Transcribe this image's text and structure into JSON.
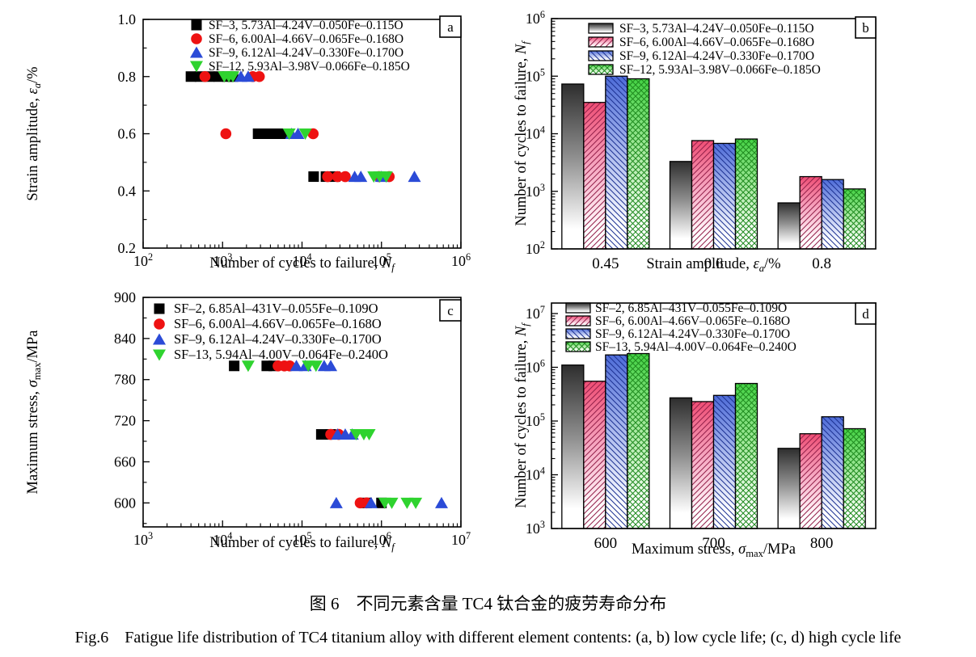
{
  "figure": {
    "caption_zh": "图 6　不同元素含量 TC4 钛合金的疲劳寿命分布",
    "caption_en": "Fig.6　Fatigue life distribution of TC4 titanium alloy with different element contents: (a, b) low cycle life; (c, d) high cycle life"
  },
  "palette": {
    "black": "#000000",
    "red": "#ee1212",
    "blue": "#2b4bd7",
    "green": "#2fd32f",
    "gray_top": "#2e2e2e",
    "gray_mid": "#909090",
    "pink_top": "#ef4d74",
    "pink_mid": "#f7abc4",
    "blue_top": "#4e6cd8",
    "blue_mid": "#aebcee",
    "green_top": "#44d244",
    "green_mid": "#aceaa4",
    "pink_hatch": "#93204a",
    "blue_hatch": "#1c3192",
    "green_hatch": "#1e8a1e",
    "axis": "#000000"
  },
  "chart_data": [
    {
      "panel": "a",
      "type": "scatter",
      "x_axis": {
        "log": true,
        "exp_min": 2,
        "exp_max": 6,
        "label_parts": [
          [
            "t",
            "Number of cycles to failure, "
          ],
          [
            "i",
            "N"
          ],
          [
            "s",
            "f"
          ]
        ]
      },
      "y_axis": {
        "min": 0.2,
        "max": 1.0,
        "ticks": [
          0.2,
          0.4,
          0.6,
          0.8,
          1.0
        ],
        "minor": [
          0.3,
          0.5,
          0.7,
          0.9
        ],
        "decimals": 1,
        "label_parts": [
          [
            "t",
            "Strain amplitude, "
          ],
          [
            "i",
            "ε"
          ],
          [
            "s",
            "a"
          ],
          [
            "t",
            "/%"
          ]
        ]
      },
      "legend_position": "top-left",
      "series": [
        {
          "name": "SF–3, 5.73Al–4.24V–0.050Fe–0.115O",
          "marker": "square",
          "color": "black",
          "points": [
            [
              400,
              0.8
            ],
            [
              520,
              0.8
            ],
            [
              680,
              0.8
            ],
            [
              900,
              0.8
            ],
            [
              1150,
              0.8
            ],
            [
              1350,
              0.8
            ],
            [
              2800,
              0.6
            ],
            [
              3400,
              0.6
            ],
            [
              4200,
              0.6
            ],
            [
              5100,
              0.6
            ],
            [
              5900,
              0.6
            ],
            [
              14000,
              0.45
            ],
            [
              20000,
              0.45
            ],
            [
              26000,
              0.45
            ]
          ]
        },
        {
          "name": "SF–6, 6.00Al–4.66V–0.065Fe–0.168O",
          "marker": "circle",
          "color": "red",
          "points": [
            [
              600,
              0.8
            ],
            [
              2400,
              0.8
            ],
            [
              2900,
              0.8
            ],
            [
              1100,
              0.6
            ],
            [
              13800,
              0.6
            ],
            [
              21000,
              0.45
            ],
            [
              28000,
              0.45
            ],
            [
              35000,
              0.45
            ],
            [
              93000,
              0.45
            ],
            [
              125000,
              0.45
            ]
          ]
        },
        {
          "name": "SF–9, 6.12Al–4.24V–0.330Fe–0.170O",
          "marker": "triangle-up",
          "color": "blue",
          "points": [
            [
              1700,
              0.8
            ],
            [
              2100,
              0.8
            ],
            [
              7400,
              0.6
            ],
            [
              8900,
              0.6
            ],
            [
              46000,
              0.45
            ],
            [
              55000,
              0.45
            ],
            [
              100000,
              0.45
            ],
            [
              260000,
              0.45
            ]
          ]
        },
        {
          "name": "SF–12, 5.93Al–3.98V–0.066Fe–0.185O",
          "marker": "triangle-down",
          "color": "green",
          "points": [
            [
              1050,
              0.8
            ],
            [
              1200,
              0.8
            ],
            [
              1350,
              0.8
            ],
            [
              6900,
              0.6
            ],
            [
              11000,
              0.6
            ],
            [
              80000,
              0.45
            ],
            [
              95000,
              0.45
            ],
            [
              115000,
              0.45
            ]
          ]
        }
      ]
    },
    {
      "panel": "b",
      "type": "bar",
      "categories": [
        "0.45",
        "0.6",
        "0.8"
      ],
      "x_axis": {
        "label_parts": [
          [
            "t",
            "Strain amplitude, "
          ],
          [
            "i",
            "ε"
          ],
          [
            "s",
            "a"
          ],
          [
            "t",
            "/%"
          ]
        ]
      },
      "y_axis": {
        "log": true,
        "exp_min": 2,
        "exp_max": 6,
        "label_parts": [
          [
            "t",
            "Number of cycles to failure, "
          ],
          [
            "i",
            "N"
          ],
          [
            "s",
            "f"
          ]
        ]
      },
      "legend_position": "top-left",
      "series": [
        {
          "name": "SF–3, 5.73Al–4.24V–0.050Fe–0.115O",
          "fill": "gray",
          "values": [
            73000,
            3300,
            630
          ]
        },
        {
          "name": "SF–6, 6.00Al–4.66V–0.065Fe–0.168O",
          "fill": "pink",
          "values": [
            35000,
            7600,
            1800
          ]
        },
        {
          "name": "SF–9, 6.12Al–4.24V–0.330Fe–0.170O",
          "fill": "blue",
          "values": [
            100000,
            6800,
            1600
          ]
        },
        {
          "name": "SF–12, 5.93Al–3.98V–0.066Fe–0.185O",
          "fill": "green",
          "values": [
            90000,
            8100,
            1100
          ]
        }
      ]
    },
    {
      "panel": "c",
      "type": "scatter",
      "x_axis": {
        "log": true,
        "exp_min": 3,
        "exp_max": 7,
        "label_parts": [
          [
            "t",
            "Number of cycles to failure, "
          ],
          [
            "i",
            "N"
          ],
          [
            "s",
            "f"
          ]
        ]
      },
      "y_axis": {
        "min": 565,
        "max": 900,
        "ticks": [
          600,
          660,
          720,
          780,
          840,
          900
        ],
        "minor": [
          570,
          630,
          690,
          750,
          810,
          870
        ],
        "decimals": 0,
        "label_parts": [
          [
            "t",
            "Maximum stress, "
          ],
          [
            "i",
            "σ"
          ],
          [
            "sr",
            "max"
          ],
          [
            "t",
            "/MPa"
          ]
        ]
      },
      "legend_position": "top-left",
      "series": [
        {
          "name": "SF–2, 6.85Al–431V–0.055Fe–0.109O",
          "marker": "square",
          "color": "black",
          "points": [
            [
              14000,
              800
            ],
            [
              36000,
              800
            ],
            [
              44000,
              800
            ],
            [
              175000,
              700
            ],
            [
              230000,
              700
            ],
            [
              650000,
              600
            ],
            [
              1000000,
              600
            ]
          ]
        },
        {
          "name": "SF–6, 6.00Al–4.66V–0.065Fe–0.168O",
          "marker": "circle",
          "color": "red",
          "points": [
            [
              50000,
              800
            ],
            [
              60000,
              800
            ],
            [
              70000,
              800
            ],
            [
              230000,
              700
            ],
            [
              290000,
              700
            ],
            [
              540000,
              600
            ],
            [
              650000,
              600
            ]
          ]
        },
        {
          "name": "SF–9, 6.12Al–4.24V–0.330Fe–0.170O",
          "marker": "triangle-up",
          "color": "blue",
          "points": [
            [
              85000,
              800
            ],
            [
              110000,
              800
            ],
            [
              190000,
              800
            ],
            [
              230000,
              800
            ],
            [
              280000,
              700
            ],
            [
              350000,
              700
            ],
            [
              430000,
              700
            ],
            [
              270000,
              600
            ],
            [
              740000,
              600
            ],
            [
              5700000,
              600
            ]
          ]
        },
        {
          "name": "SF–13, 5.94Al–4.00V–0.064Fe–0.240O",
          "marker": "triangle-down",
          "color": "green",
          "points": [
            [
              21000,
              800
            ],
            [
              120000,
              800
            ],
            [
              150000,
              800
            ],
            [
              480000,
              700
            ],
            [
              600000,
              700
            ],
            [
              700000,
              700
            ],
            [
              1100000,
              600
            ],
            [
              1350000,
              600
            ],
            [
              2100000,
              600
            ],
            [
              2700000,
              600
            ]
          ]
        }
      ]
    },
    {
      "panel": "d",
      "type": "bar",
      "categories": [
        "600",
        "700",
        "800"
      ],
      "x_axis": {
        "label_parts": [
          [
            "t",
            "Maximum stress, "
          ],
          [
            "i",
            "σ"
          ],
          [
            "sr",
            "max"
          ],
          [
            "t",
            "/MPa"
          ]
        ]
      },
      "y_axis": {
        "log": true,
        "exp_min": 3,
        "exp_max": 7,
        "label_parts": [
          [
            "t",
            "Number of cycles to failure, "
          ],
          [
            "i",
            "N"
          ],
          [
            "s",
            "f"
          ]
        ]
      },
      "legend_position": "top-left",
      "series": [
        {
          "name": "SF–2, 6.85Al–431V–0.055Fe–0.109O",
          "fill": "gray",
          "values": [
            1100000,
            270000,
            31000
          ]
        },
        {
          "name": "SF–6, 6.00Al–4.66V–0.065Fe–0.168O",
          "fill": "pink",
          "values": [
            550000,
            230000,
            58000
          ]
        },
        {
          "name": "SF–9, 6.12Al–4.24V–0.330Fe–0.170O",
          "fill": "blue",
          "values": [
            1700000,
            300000,
            120000
          ]
        },
        {
          "name": "SF–13, 5.94Al–4.00V–0.064Fe–0.240O",
          "fill": "green",
          "values": [
            1800000,
            500000,
            72000
          ]
        }
      ]
    }
  ]
}
